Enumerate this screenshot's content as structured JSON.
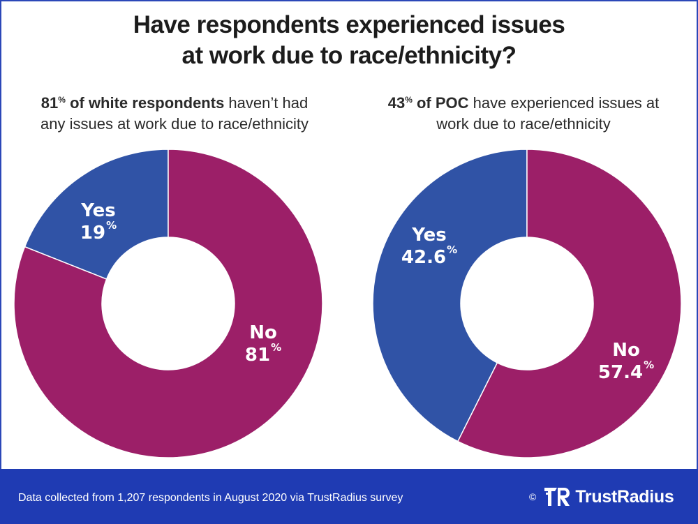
{
  "title_line1": "Have respondents experienced issues",
  "title_line2": "at work due to race/ethnicity?",
  "colors": {
    "yes": "#3053a6",
    "no": "#9c1f68",
    "footer": "#1f3bb3",
    "border": "#2b47b8"
  },
  "left": {
    "sub_num": "81",
    "sub_pct": "%",
    "sub_bold": " of white respondents",
    "sub_rest1": " haven’t had",
    "sub_line2": "any issues at work due to race/ethnicity"
  },
  "right": {
    "sub_num": "43",
    "sub_pct": "%",
    "sub_bold": " of POC",
    "sub_rest1": " have experienced issues at",
    "sub_line2": "work due to race/ethnicity"
  },
  "chart_data": [
    {
      "type": "pie",
      "subtype": "donut",
      "title": "81% of white respondents haven’t had any issues at work due to race/ethnicity",
      "categories": [
        "Yes",
        "No"
      ],
      "values": [
        19,
        81
      ],
      "labels": [
        {
          "name": "Yes",
          "value": "19",
          "pct": "%"
        },
        {
          "name": "No",
          "value": "81",
          "pct": "%"
        }
      ]
    },
    {
      "type": "pie",
      "subtype": "donut",
      "title": "43% of POC have experienced issues at work due to race/ethnicity",
      "categories": [
        "Yes",
        "No"
      ],
      "values": [
        42.6,
        57.4
      ],
      "labels": [
        {
          "name": "Yes",
          "value": "42.6",
          "pct": "%"
        },
        {
          "name": "No",
          "value": "57.4",
          "pct": "%"
        }
      ]
    }
  ],
  "footer": {
    "note": "Data collected from 1,207 respondents in August 2020 via TrustRadius survey",
    "copyright": "©",
    "brand": "TrustRadius"
  }
}
